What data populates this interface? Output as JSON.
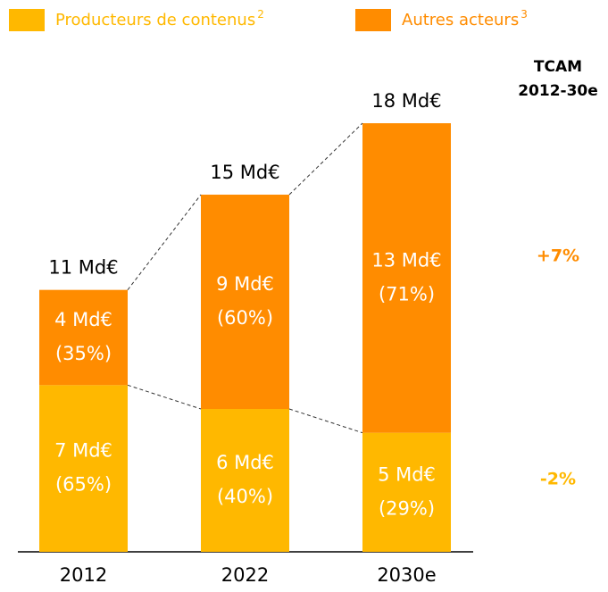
{
  "chart_data": {
    "type": "stacked_bar",
    "categories": [
      "2012",
      "2022",
      "2030e"
    ],
    "series": [
      {
        "name": "Producteurs de contenus",
        "note": "2",
        "color": "#FFB800",
        "values": [
          7,
          6,
          5
        ],
        "value_labels": [
          "7 Md€",
          "6 Md€",
          "5 Md€"
        ],
        "share_labels": [
          "(65%)",
          "(40%)",
          "(29%)"
        ],
        "cagr_label": "-2%"
      },
      {
        "name": "Autres acteurs",
        "note": "3",
        "color": "#FF8C00",
        "values": [
          4,
          9,
          13
        ],
        "value_labels": [
          "4 Md€",
          "9 Md€",
          "13 Md€"
        ],
        "share_labels": [
          "(35%)",
          "(60%)",
          "(71%)"
        ],
        "cagr_label": "+7%"
      }
    ],
    "totals": [
      11,
      15,
      18
    ],
    "total_labels": [
      "11 Md€",
      "15 Md€",
      "18 Md€"
    ],
    "cagr_title": [
      "TCAM",
      "2012-30e"
    ],
    "ylim": [
      0,
      18
    ]
  }
}
